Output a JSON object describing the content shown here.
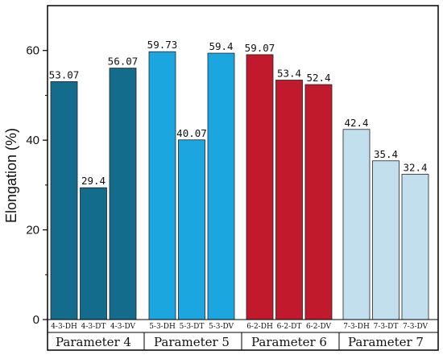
{
  "chart_data": {
    "type": "bar",
    "xlabel": "",
    "ylabel": "Elongation (%)",
    "ylim": [
      0,
      70
    ],
    "yticks": [
      0,
      20,
      40,
      60
    ],
    "grid": false,
    "groups": [
      {
        "name": "Parameter 4",
        "color": "#136c8c",
        "bars": [
          {
            "category": "4-3-DH",
            "value": 53.07,
            "label": "53.07"
          },
          {
            "category": "4-3-DT",
            "value": 29.4,
            "label": "29.4"
          },
          {
            "category": "4-3-DV",
            "value": 56.07,
            "label": "56.07"
          }
        ]
      },
      {
        "name": "Parameter 5",
        "color": "#1ba6e0",
        "bars": [
          {
            "category": "5-3-DH",
            "value": 59.73,
            "label": "59.73"
          },
          {
            "category": "5-3-DT",
            "value": 40.07,
            "label": "40.07"
          },
          {
            "category": "5-3-DV",
            "value": 59.4,
            "label": "59.4"
          }
        ]
      },
      {
        "name": "Parameter 6",
        "color": "#c01a2c",
        "bars": [
          {
            "category": "6-2-DH",
            "value": 59.07,
            "label": "59.07"
          },
          {
            "category": "6-2-DT",
            "value": 53.4,
            "label": "53.4"
          },
          {
            "category": "6-2-DV",
            "value": 52.4,
            "label": "52.4"
          }
        ]
      },
      {
        "name": "Parameter 7",
        "color": "#c2dfee",
        "bars": [
          {
            "category": "7-3-DH",
            "value": 42.4,
            "label": "42.4"
          },
          {
            "category": "7-3-DT",
            "value": 35.4,
            "label": "35.4"
          },
          {
            "category": "7-3-DV",
            "value": 32.4,
            "label": "32.4"
          }
        ]
      }
    ]
  }
}
